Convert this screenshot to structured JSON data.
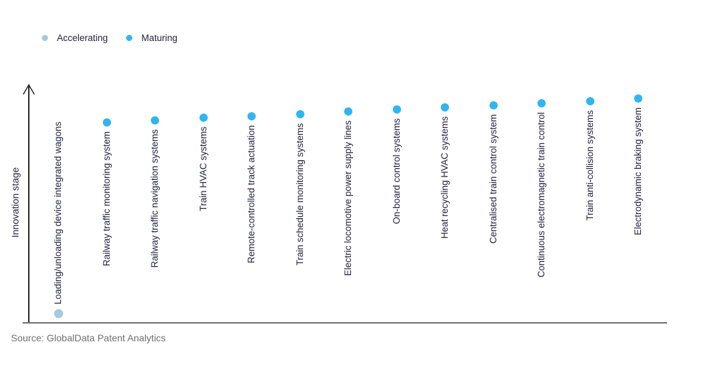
{
  "legend": {
    "items": [
      {
        "label": "Accelerating",
        "color": "#a3cade"
      },
      {
        "label": "Maturing",
        "color": "#30b5f0"
      }
    ]
  },
  "axis": {
    "ylabel": "Innovation stage"
  },
  "source": "Source: GlobalData Patent Analytics",
  "colors": {
    "accelerating": "#a3cade",
    "maturing": "#30b5f0",
    "label_text": "#23233f",
    "axis_vertical": "#262626",
    "axis_horizontal": "#6e6e6e"
  },
  "chart_data": {
    "type": "scatter",
    "title": "",
    "xlabel": "",
    "ylabel": "Innovation stage",
    "y_axis_ticks": "none (conceptual stage axis with upward arrow)",
    "legend_position": "top-left",
    "grid": false,
    "series_names": [
      "Accelerating",
      "Maturing"
    ],
    "points": [
      {
        "label": "Loading/unloading device integrated wagons",
        "series": "Accelerating",
        "x": 0,
        "stage": 0.04
      },
      {
        "label": "Railway traffic monitoring system",
        "series": "Maturing",
        "x": 1,
        "stage": 0.844
      },
      {
        "label": "Railway traffic navigation systems",
        "series": "Maturing",
        "x": 2,
        "stage": 0.853
      },
      {
        "label": "Train HVAC systems",
        "series": "Maturing",
        "x": 3,
        "stage": 0.865
      },
      {
        "label": "Remote-controlled track actuation",
        "series": "Maturing",
        "x": 4,
        "stage": 0.87
      },
      {
        "label": "Train schedule monitoring systems",
        "series": "Maturing",
        "x": 5,
        "stage": 0.879
      },
      {
        "label": "Electric locomotive power supply lines",
        "series": "Maturing",
        "x": 6,
        "stage": 0.89
      },
      {
        "label": "On-board control systems",
        "series": "Maturing",
        "x": 7,
        "stage": 0.899
      },
      {
        "label": "Heat recycling HVAC systems",
        "series": "Maturing",
        "x": 8,
        "stage": 0.908
      },
      {
        "label": "Centralised train control system",
        "series": "Maturing",
        "x": 9,
        "stage": 0.917
      },
      {
        "label": "Continuous electromagnetic train control",
        "series": "Maturing",
        "x": 10,
        "stage": 0.925
      },
      {
        "label": "Train anti-collision systems",
        "series": "Maturing",
        "x": 11,
        "stage": 0.934
      },
      {
        "label": "Electrodynamic braking system",
        "series": "Maturing",
        "x": 12,
        "stage": 0.945
      }
    ]
  }
}
